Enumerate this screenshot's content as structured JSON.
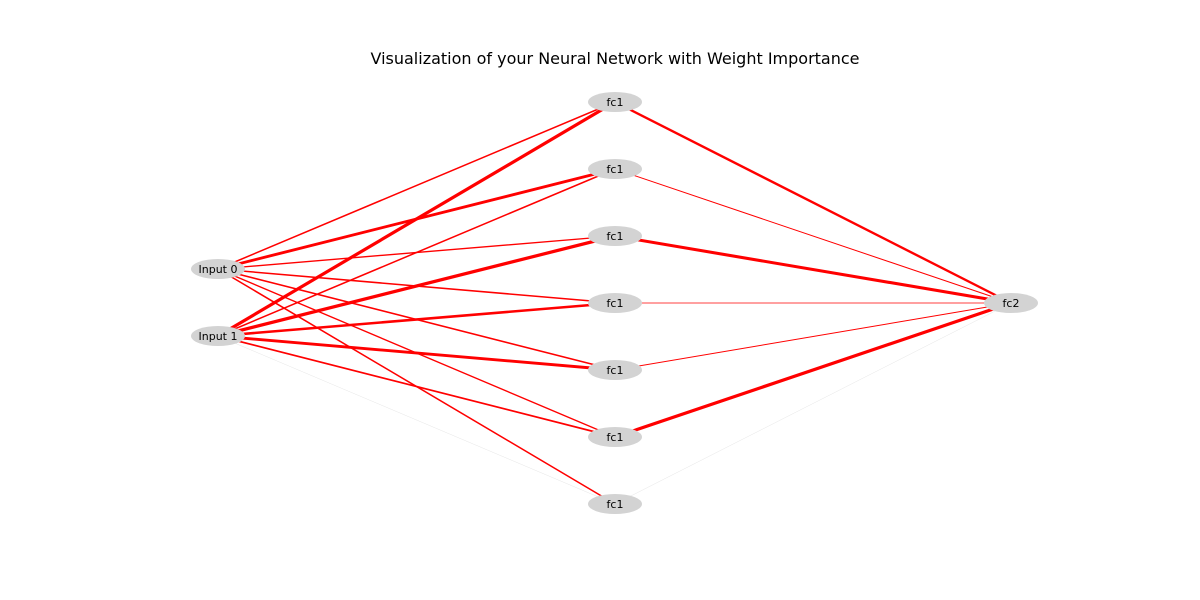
{
  "title": "Visualization of your Neural Network with Weight Importance",
  "colors": {
    "edge": "#ff0000",
    "node_fill": "#d3d3d3",
    "background": "#ffffff",
    "text": "#000000"
  },
  "nodes": [
    {
      "id": "in0",
      "label": "Input 0"
    },
    {
      "id": "in1",
      "label": "Input 1"
    },
    {
      "id": "h0",
      "label": "fc1"
    },
    {
      "id": "h1",
      "label": "fc1"
    },
    {
      "id": "h2",
      "label": "fc1"
    },
    {
      "id": "h3",
      "label": "fc1"
    },
    {
      "id": "h4",
      "label": "fc1"
    },
    {
      "id": "h5",
      "label": "fc1"
    },
    {
      "id": "h6",
      "label": "fc1"
    },
    {
      "id": "out",
      "label": "fc2"
    }
  ],
  "edges": [
    {
      "from": "in0",
      "to": "h0",
      "weight": 0.45
    },
    {
      "from": "in0",
      "to": "h1",
      "weight": 0.85
    },
    {
      "from": "in0",
      "to": "h2",
      "weight": 0.4
    },
    {
      "from": "in0",
      "to": "h3",
      "weight": 0.45
    },
    {
      "from": "in0",
      "to": "h4",
      "weight": 0.45
    },
    {
      "from": "in0",
      "to": "h5",
      "weight": 0.4
    },
    {
      "from": "in0",
      "to": "h6",
      "weight": 0.45
    },
    {
      "from": "in1",
      "to": "h0",
      "weight": 0.95
    },
    {
      "from": "in1",
      "to": "h1",
      "weight": 0.45
    },
    {
      "from": "in1",
      "to": "h2",
      "weight": 0.95
    },
    {
      "from": "in1",
      "to": "h3",
      "weight": 0.75
    },
    {
      "from": "in1",
      "to": "h4",
      "weight": 0.85
    },
    {
      "from": "in1",
      "to": "h5",
      "weight": 0.5
    },
    {
      "from": "in1",
      "to": "h6",
      "weight": 0.03
    },
    {
      "from": "h0",
      "to": "out",
      "weight": 0.7
    },
    {
      "from": "h1",
      "to": "out",
      "weight": 0.3
    },
    {
      "from": "h2",
      "to": "out",
      "weight": 0.9
    },
    {
      "from": "h3",
      "to": "out",
      "weight": 0.25
    },
    {
      "from": "h4",
      "to": "out",
      "weight": 0.3
    },
    {
      "from": "h5",
      "to": "out",
      "weight": 0.95
    },
    {
      "from": "h6",
      "to": "out",
      "weight": 0.03
    }
  ]
}
